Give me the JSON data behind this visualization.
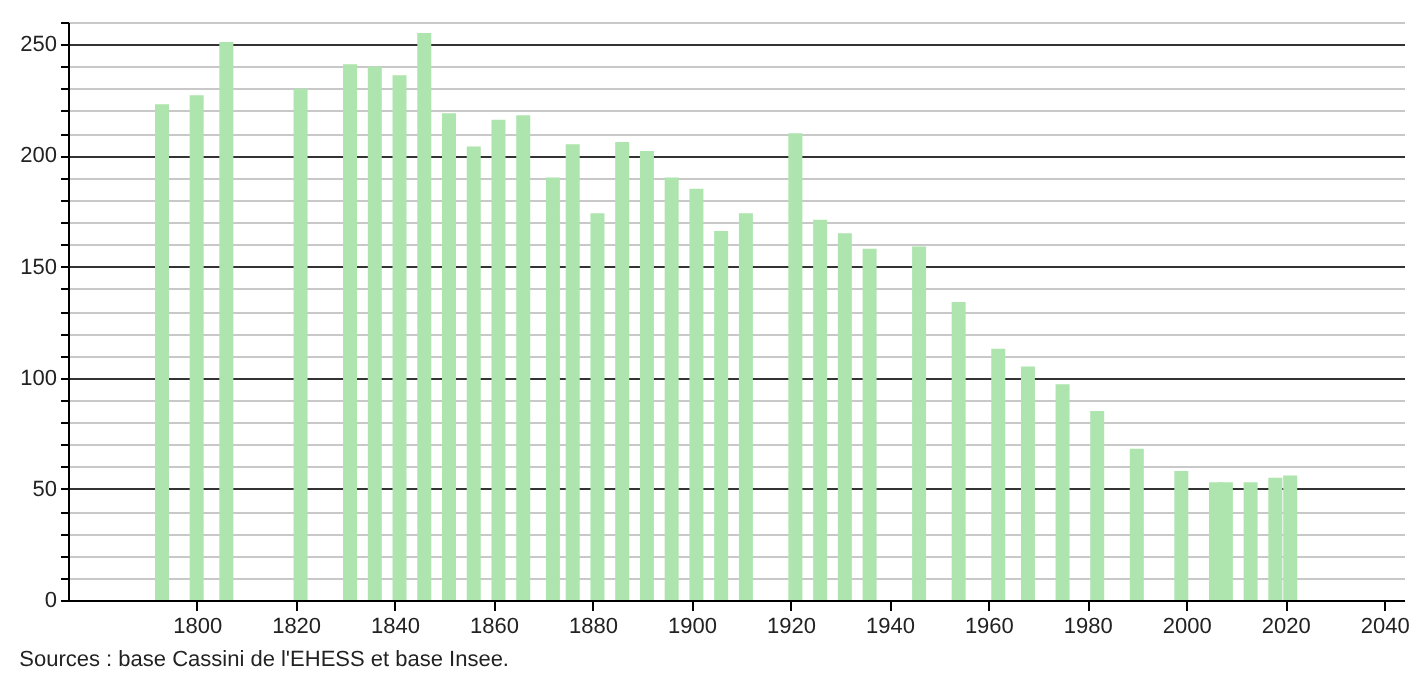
{
  "chart_data": {
    "type": "bar",
    "x": [
      1793,
      1800,
      1806,
      1821,
      1831,
      1836,
      1841,
      1846,
      1851,
      1856,
      1861,
      1866,
      1872,
      1876,
      1881,
      1886,
      1891,
      1896,
      1901,
      1906,
      1911,
      1921,
      1926,
      1931,
      1936,
      1946,
      1954,
      1962,
      1968,
      1975,
      1982,
      1990,
      1999,
      2006,
      2008,
      2013,
      2018,
      2021
    ],
    "values": [
      223,
      227,
      251,
      230,
      241,
      240,
      236,
      255,
      219,
      204,
      216,
      218,
      190,
      205,
      174,
      206,
      202,
      190,
      185,
      166,
      174,
      210,
      171,
      165,
      158,
      159,
      134,
      113,
      105,
      97,
      85,
      68,
      58,
      53,
      53,
      53,
      55,
      56
    ],
    "color": "#aee5ae",
    "xlim": [
      1774,
      2044
    ],
    "xticks": [
      1800,
      1820,
      1840,
      1860,
      1880,
      1900,
      1920,
      1940,
      1960,
      1980,
      2000,
      2020,
      2040
    ],
    "ylim": [
      0,
      260
    ],
    "yticks": [
      0,
      {
        "value": 10,
        "label": null
      },
      {
        "value": 20,
        "label": null
      },
      {
        "value": 30,
        "label": null
      },
      {
        "value": 40,
        "label": null
      },
      50,
      {
        "value": 60,
        "label": null
      },
      {
        "value": 70,
        "label": null
      },
      {
        "value": 80,
        "label": null
      },
      {
        "value": 90,
        "label": null
      },
      100,
      {
        "value": 110,
        "label": null
      },
      {
        "value": 120,
        "label": null
      },
      {
        "value": 130,
        "label": null
      },
      {
        "value": 140,
        "label": null
      },
      150,
      {
        "value": 160,
        "label": null
      },
      {
        "value": 170,
        "label": null
      },
      {
        "value": 180,
        "label": null
      },
      {
        "value": 190,
        "label": null
      },
      200,
      {
        "value": 210,
        "label": null
      },
      {
        "value": 220,
        "label": null
      },
      {
        "value": 230,
        "label": null
      },
      {
        "value": 240,
        "label": null
      },
      250,
      {
        "value": 260,
        "label": null
      }
    ],
    "grid": "y",
    "annotations": [
      "Sources : base Cassini de l'EHESS et base Insee."
    ]
  }
}
